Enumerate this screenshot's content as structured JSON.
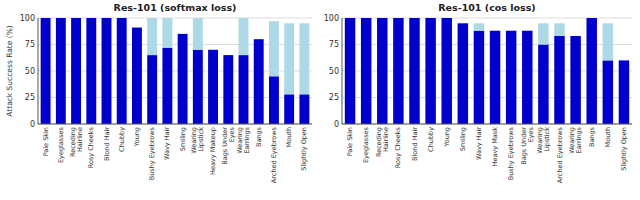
{
  "chart_data": [
    {
      "type": "bar",
      "stacked": true,
      "title": "Res-101 (softmax loss)",
      "ylabel": "Attack Success Rate (%)",
      "categories": [
        "Pale Skin",
        "Eyeglasses",
        "Receding\nHairline",
        "Rosy Cheeks",
        "Blond Hair",
        "Chubby",
        "Young",
        "Bushy Eyebrows",
        "Wavy Hair",
        "Smiling",
        "Wearing\nLipstick",
        "Heavy Makeup",
        "Bags Under\nEyes",
        "Wearing\nEarrings",
        "Bangs",
        "Arched Eyebrows",
        "Mouth",
        "Slightly Open"
      ],
      "series": [
        {
          "color": "#0000CC",
          "values": [
            100,
            100,
            100,
            100,
            100,
            100,
            91,
            65,
            72,
            85,
            70,
            70,
            65,
            65,
            80,
            45,
            28,
            28
          ]
        },
        {
          "color": "#ADD8E6",
          "values": [
            0,
            0,
            0,
            0,
            0,
            0,
            0,
            35,
            28,
            0,
            30,
            0,
            0,
            35,
            0,
            52,
            67,
            67
          ]
        }
      ],
      "ylim": [
        0,
        100
      ],
      "yticks": [
        0,
        25,
        50,
        75,
        100
      ],
      "grid": true
    },
    {
      "type": "bar",
      "stacked": true,
      "title": "Res-101 (cos loss)",
      "categories": [
        "Pale Skin",
        "Eyeglasses",
        "Receding\nHairline",
        "Rosy Cheeks",
        "Blond Hair",
        "Chubby",
        "Young",
        "Smiling",
        "Wavy Hair",
        "Heavy Mask",
        "Bushy Eyebrows",
        "Bags Under\nEyes",
        "Wearing\nLipstick",
        "Arched Eyebrows",
        "Wearing\nEarrings",
        "Bangs",
        "Mouth",
        "Slightly Open"
      ],
      "series": [
        {
          "color": "#0000CC",
          "values": [
            100,
            100,
            100,
            100,
            100,
            100,
            100,
            95,
            88,
            88,
            88,
            88,
            75,
            83,
            83,
            100,
            60,
            60
          ]
        },
        {
          "color": "#ADD8E6",
          "values": [
            0,
            0,
            0,
            0,
            0,
            0,
            0,
            0,
            7,
            0,
            0,
            0,
            20,
            12,
            0,
            0,
            35,
            0
          ]
        }
      ],
      "ylim": [
        0,
        100
      ],
      "yticks": [
        0,
        25,
        50,
        75,
        100
      ],
      "grid": true
    }
  ]
}
